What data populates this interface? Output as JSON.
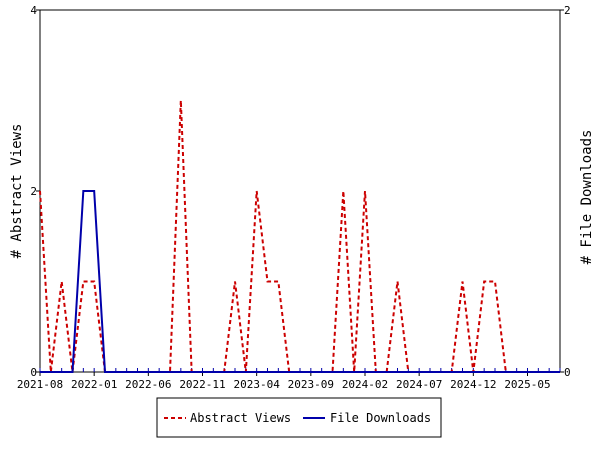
{
  "chart_data": {
    "type": "line",
    "ylabel_left": "# Abstract Views",
    "ylabel_right": "# File Downloads",
    "ylim_left": [
      0,
      4
    ],
    "ylim_right": [
      0,
      2
    ],
    "y_ticks_left": [
      "0",
      "2",
      "4"
    ],
    "y_ticks_right": [
      "0",
      "2"
    ],
    "x_tick_labels": [
      "2021-08",
      "2022-01",
      "2022-06",
      "2022-11",
      "2023-04",
      "2023-09",
      "2024-02",
      "2024-07",
      "2024-12",
      "2025-05"
    ],
    "x": [
      "2021-08",
      "2021-09",
      "2021-10",
      "2021-11",
      "2021-12",
      "2022-01",
      "2022-02",
      "2022-03",
      "2022-04",
      "2022-05",
      "2022-06",
      "2022-07",
      "2022-08",
      "2022-09",
      "2022-10",
      "2022-11",
      "2022-12",
      "2023-01",
      "2023-02",
      "2023-03",
      "2023-04",
      "2023-05",
      "2023-06",
      "2023-07",
      "2023-08",
      "2023-09",
      "2023-10",
      "2023-11",
      "2023-12",
      "2024-01",
      "2024-02",
      "2024-03",
      "2024-04",
      "2024-05",
      "2024-06",
      "2024-07",
      "2024-08",
      "2024-09",
      "2024-10",
      "2024-11",
      "2024-12",
      "2025-01",
      "2025-02",
      "2025-03",
      "2025-04",
      "2025-05",
      "2025-06",
      "2025-07",
      "2025-08"
    ],
    "series": [
      {
        "name": "Abstract Views",
        "axis": "left",
        "color": "#cc0000",
        "style": "dashed",
        "values": [
          2,
          0,
          1,
          0,
          1,
          1,
          0,
          0,
          0,
          0,
          0,
          0,
          0,
          3,
          0,
          0,
          0,
          0,
          1,
          0,
          2,
          1,
          1,
          0,
          0,
          0,
          0,
          0,
          2,
          0,
          2,
          0,
          0,
          1,
          0,
          0,
          0,
          0,
          0,
          1,
          0,
          1,
          1,
          0,
          0,
          0,
          0,
          0,
          0
        ]
      },
      {
        "name": "File Downloads",
        "axis": "right",
        "color": "#0000aa",
        "style": "solid",
        "values": [
          0,
          0,
          0,
          0,
          1,
          1,
          0,
          0,
          0,
          0,
          0,
          0,
          0,
          0,
          0,
          0,
          0,
          0,
          0,
          0,
          0,
          0,
          0,
          0,
          0,
          0,
          0,
          0,
          0,
          0,
          0,
          0,
          0,
          0,
          0,
          0,
          0,
          0,
          0,
          0,
          0,
          0,
          0,
          0,
          0,
          0,
          0,
          0,
          0
        ]
      }
    ],
    "legend_position": "bottom"
  }
}
